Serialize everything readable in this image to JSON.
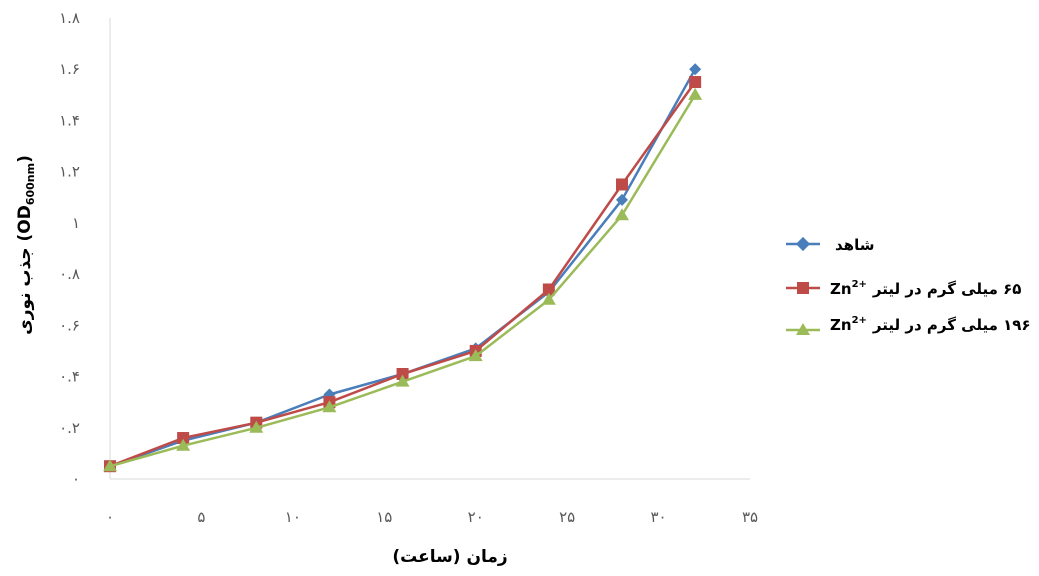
{
  "chart_data": {
    "type": "line",
    "xlabel": "زمان (ساعت)",
    "ylabel": "جذب نوری (OD600nm)",
    "ylabel_parts": {
      "main": "جذب نوری (OD",
      "sub": "600nm",
      "close": ")"
    },
    "xlim": [
      0,
      35
    ],
    "ylim": [
      0,
      1.8
    ],
    "x_ticks": [
      {
        "v": 0,
        "label": "۰"
      },
      {
        "v": 5,
        "label": "۵"
      },
      {
        "v": 10,
        "label": "۱۰"
      },
      {
        "v": 15,
        "label": "۱۵"
      },
      {
        "v": 20,
        "label": "۲۰"
      },
      {
        "v": 25,
        "label": "۲۵"
      },
      {
        "v": 30,
        "label": "۳۰"
      },
      {
        "v": 35,
        "label": "۳۵"
      }
    ],
    "y_ticks": [
      {
        "v": 0,
        "label": "۰"
      },
      {
        "v": 0.2,
        "label": "۰.۲"
      },
      {
        "v": 0.4,
        "label": "۰.۴"
      },
      {
        "v": 0.6,
        "label": "۰.۶"
      },
      {
        "v": 0.8,
        "label": "۰.۸"
      },
      {
        "v": 1.0,
        "label": "۱"
      },
      {
        "v": 1.2,
        "label": "۱.۲"
      },
      {
        "v": 1.4,
        "label": "۱.۴"
      },
      {
        "v": 1.6,
        "label": "۱.۶"
      },
      {
        "v": 1.8,
        "label": "۱.۸"
      }
    ],
    "grid": false,
    "legend_position": "right",
    "series": [
      {
        "name": "شاهد",
        "color": "#4a7ebb",
        "marker": "diamond",
        "points": [
          [
            0,
            0.05
          ],
          [
            4,
            0.15
          ],
          [
            8,
            0.22
          ],
          [
            12,
            0.33
          ],
          [
            16,
            0.41
          ],
          [
            20,
            0.51
          ],
          [
            24,
            0.73
          ],
          [
            28,
            1.09
          ],
          [
            32,
            1.6
          ]
        ]
      },
      {
        "name": "۶۵ میلی گرم در لیتر Zn2+",
        "label_text": "۶۵ میلی گرم در لیتر",
        "label_ion": "Zn",
        "label_sup": "2+",
        "color": "#be4b48",
        "marker": "square",
        "points": [
          [
            0,
            0.05
          ],
          [
            4,
            0.16
          ],
          [
            8,
            0.22
          ],
          [
            12,
            0.3
          ],
          [
            16,
            0.41
          ],
          [
            20,
            0.5
          ],
          [
            24,
            0.74
          ],
          [
            28,
            1.15
          ],
          [
            32,
            1.55
          ]
        ]
      },
      {
        "name": "۱۹۶ میلی گرم در لیتر Zn2+",
        "label_text": "۱۹۶ میلی گرم در لیتر",
        "label_ion": "Zn",
        "label_sup": "2+",
        "color": "#9bbb59",
        "marker": "triangle",
        "points": [
          [
            0,
            0.05
          ],
          [
            4,
            0.13
          ],
          [
            8,
            0.2
          ],
          [
            12,
            0.28
          ],
          [
            16,
            0.38
          ],
          [
            20,
            0.48
          ],
          [
            24,
            0.7
          ],
          [
            28,
            1.03
          ],
          [
            32,
            1.5
          ]
        ]
      }
    ]
  }
}
